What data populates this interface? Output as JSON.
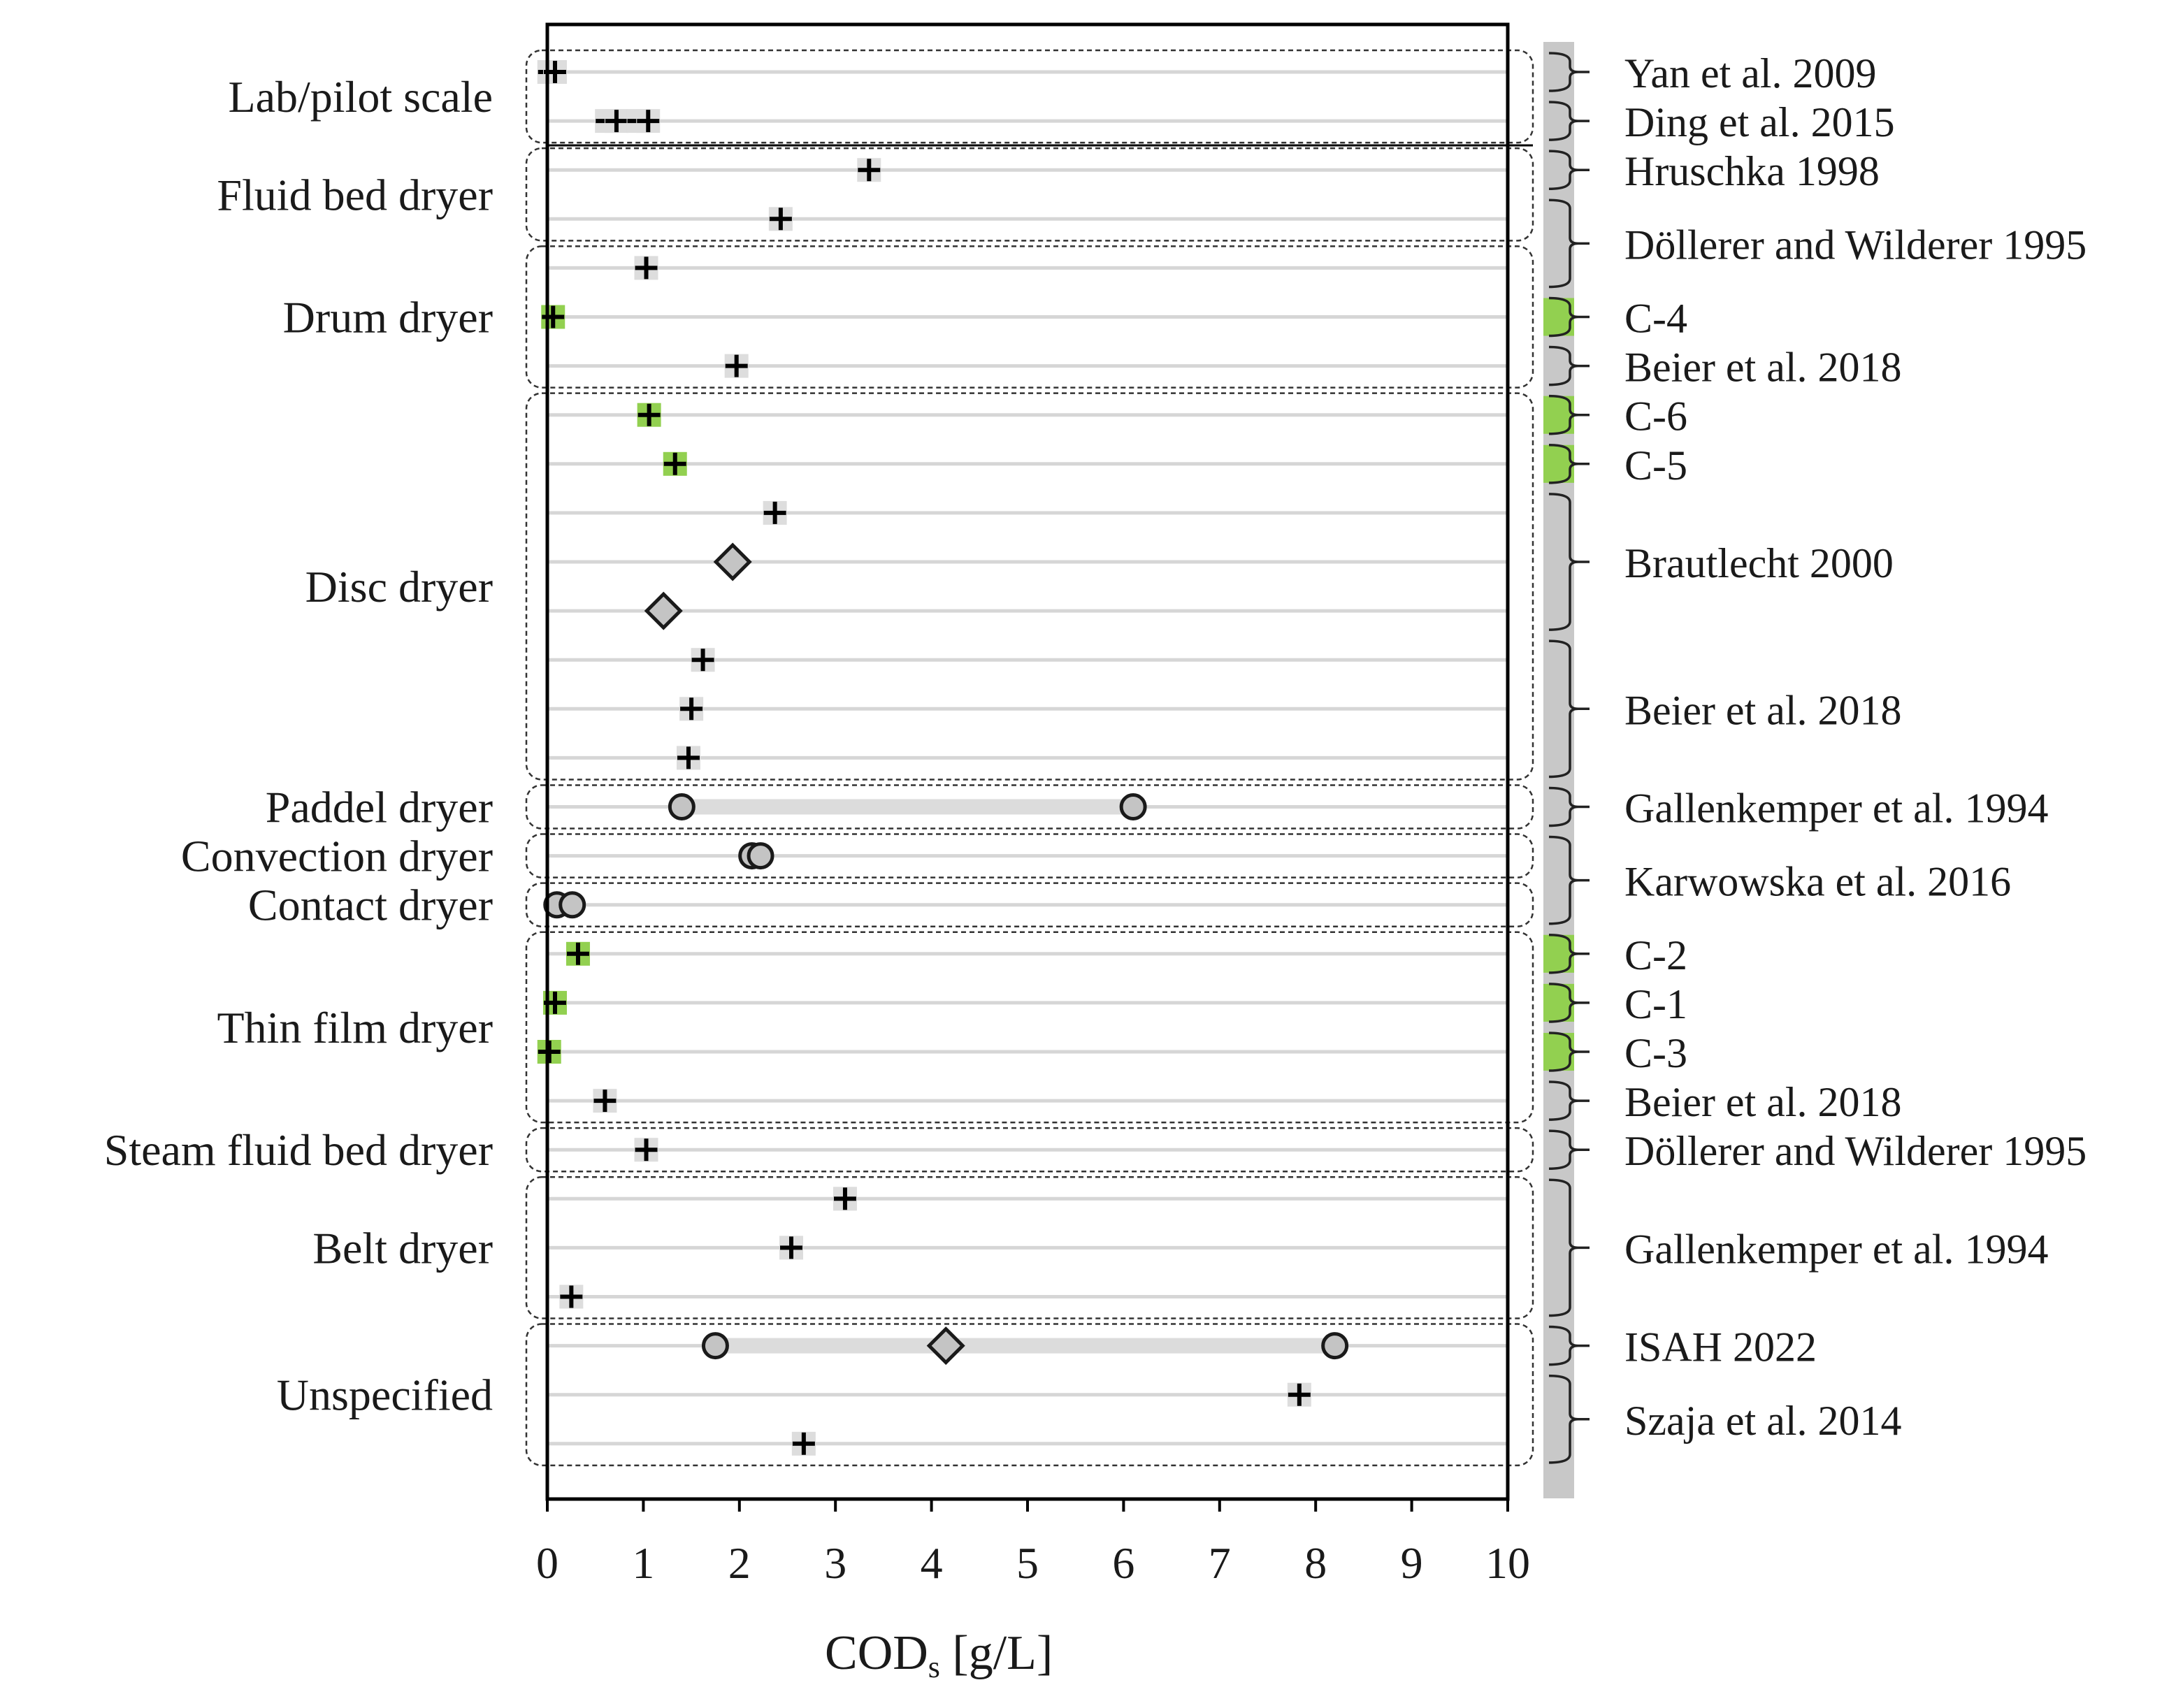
{
  "chart_data": {
    "type": "scatter",
    "xlabel": "COD",
    "xlabel_sub": "s",
    "xlabel_unit": " [g/L]",
    "xlim": [
      0,
      10
    ],
    "xticks": [
      "0",
      "1",
      "2",
      "3",
      "4",
      "5",
      "6",
      "7",
      "8",
      "9",
      "10"
    ],
    "grid": "horizontal",
    "row_count": 29,
    "groups": [
      {
        "label": "Lab/pilot scale",
        "rows": [
          0,
          1
        ]
      },
      {
        "label": "Fluid bed dryer",
        "rows": [
          2,
          3
        ]
      },
      {
        "label": "Drum dryer",
        "rows": [
          4,
          6
        ]
      },
      {
        "label": "Disc dryer",
        "rows": [
          7,
          14
        ]
      },
      {
        "label": "Paddel dryer",
        "rows": [
          15,
          15
        ]
      },
      {
        "label": "Convection dryer",
        "rows": [
          16,
          16
        ]
      },
      {
        "label": "Contact dryer",
        "rows": [
          17,
          17
        ]
      },
      {
        "label": "Thin film dryer",
        "rows": [
          18,
          21
        ]
      },
      {
        "label": "Steam fluid bed dryer",
        "rows": [
          22,
          22
        ]
      },
      {
        "label": "Belt dryer",
        "rows": [
          23,
          25
        ]
      },
      {
        "label": "Unspecified",
        "rows": [
          26,
          28
        ]
      }
    ],
    "sources": [
      {
        "label": "Yan et al. 2009",
        "rows": [
          0,
          0
        ],
        "highlight": false
      },
      {
        "label": "Ding et al. 2015",
        "rows": [
          1,
          1
        ],
        "highlight": false
      },
      {
        "label": "Hruschka 1998",
        "rows": [
          2,
          2
        ],
        "highlight": false
      },
      {
        "label": "Döllerer and Wilderer 1995",
        "rows": [
          3,
          4
        ],
        "highlight": false
      },
      {
        "label": "C-4",
        "rows": [
          5,
          5
        ],
        "highlight": true
      },
      {
        "label": "Beier et al. 2018",
        "rows": [
          6,
          6
        ],
        "highlight": false
      },
      {
        "label": "C-6",
        "rows": [
          7,
          7
        ],
        "highlight": true
      },
      {
        "label": "C-5",
        "rows": [
          8,
          8
        ],
        "highlight": true
      },
      {
        "label": "Brautlecht 2000",
        "rows": [
          9,
          11
        ],
        "highlight": false
      },
      {
        "label": "Beier et al. 2018",
        "rows": [
          12,
          14
        ],
        "highlight": false
      },
      {
        "label": "Gallenkemper et al. 1994",
        "rows": [
          15,
          15
        ],
        "highlight": false
      },
      {
        "label": "Karwowska et al. 2016",
        "rows": [
          16,
          17
        ],
        "highlight": false
      },
      {
        "label": "C-2",
        "rows": [
          18,
          18
        ],
        "highlight": true
      },
      {
        "label": "C-1",
        "rows": [
          19,
          19
        ],
        "highlight": true
      },
      {
        "label": "C-3",
        "rows": [
          20,
          20
        ],
        "highlight": true
      },
      {
        "label": "Beier et al. 2018",
        "rows": [
          21,
          21
        ],
        "highlight": false
      },
      {
        "label": "Döllerer and Wilderer 1995",
        "rows": [
          22,
          22
        ],
        "highlight": false
      },
      {
        "label": "Gallenkemper et al. 1994",
        "rows": [
          23,
          25
        ],
        "highlight": false
      },
      {
        "label": "ISAH 2022",
        "rows": [
          26,
          26
        ],
        "highlight": false
      },
      {
        "label": "Szaja et al. 2014",
        "rows": [
          27,
          28
        ],
        "highlight": false
      }
    ],
    "ranges": [
      {
        "row": 15,
        "from": 1.4,
        "to": 6.1
      },
      {
        "row": 26,
        "from": 1.75,
        "to": 8.2
      }
    ],
    "points": [
      {
        "row": 0,
        "x": 0.02,
        "marker": "plus",
        "highlight": false
      },
      {
        "row": 0,
        "x": 0.08,
        "marker": "plus",
        "highlight": false
      },
      {
        "row": 1,
        "x": 0.62,
        "marker": "plus",
        "highlight": false
      },
      {
        "row": 1,
        "x": 0.72,
        "marker": "plus",
        "highlight": false
      },
      {
        "row": 1,
        "x": 0.95,
        "marker": "plus",
        "highlight": false
      },
      {
        "row": 1,
        "x": 1.05,
        "marker": "plus",
        "highlight": false
      },
      {
        "row": 2,
        "x": 3.35,
        "marker": "plus",
        "highlight": false
      },
      {
        "row": 3,
        "x": 2.43,
        "marker": "plus",
        "highlight": false
      },
      {
        "row": 4,
        "x": 1.03,
        "marker": "plus",
        "highlight": false
      },
      {
        "row": 5,
        "x": 0.06,
        "marker": "plus",
        "highlight": true
      },
      {
        "row": 6,
        "x": 1.97,
        "marker": "plus",
        "highlight": false
      },
      {
        "row": 7,
        "x": 1.06,
        "marker": "plus",
        "highlight": true
      },
      {
        "row": 8,
        "x": 1.33,
        "marker": "plus",
        "highlight": true
      },
      {
        "row": 9,
        "x": 2.37,
        "marker": "plus",
        "highlight": false
      },
      {
        "row": 10,
        "x": 1.93,
        "marker": "diamond",
        "highlight": false
      },
      {
        "row": 11,
        "x": 1.21,
        "marker": "diamond",
        "highlight": false
      },
      {
        "row": 12,
        "x": 1.62,
        "marker": "plus",
        "highlight": false
      },
      {
        "row": 13,
        "x": 1.5,
        "marker": "plus",
        "highlight": false
      },
      {
        "row": 14,
        "x": 1.47,
        "marker": "plus",
        "highlight": false
      },
      {
        "row": 15,
        "x": 1.4,
        "marker": "circle",
        "highlight": false
      },
      {
        "row": 15,
        "x": 6.1,
        "marker": "circle",
        "highlight": false
      },
      {
        "row": 16,
        "x": 2.13,
        "marker": "circle",
        "highlight": false
      },
      {
        "row": 16,
        "x": 2.22,
        "marker": "circle",
        "highlight": false
      },
      {
        "row": 17,
        "x": 0.1,
        "marker": "circle",
        "highlight": false
      },
      {
        "row": 17,
        "x": 0.26,
        "marker": "circle",
        "highlight": false
      },
      {
        "row": 18,
        "x": 0.32,
        "marker": "plus",
        "highlight": true
      },
      {
        "row": 19,
        "x": 0.08,
        "marker": "plus",
        "highlight": true
      },
      {
        "row": 20,
        "x": 0.02,
        "marker": "plus",
        "highlight": true
      },
      {
        "row": 21,
        "x": 0.6,
        "marker": "plus",
        "highlight": false
      },
      {
        "row": 22,
        "x": 1.03,
        "marker": "plus",
        "highlight": false
      },
      {
        "row": 23,
        "x": 3.1,
        "marker": "plus",
        "highlight": false
      },
      {
        "row": 24,
        "x": 2.54,
        "marker": "plus",
        "highlight": false
      },
      {
        "row": 25,
        "x": 0.25,
        "marker": "plus",
        "highlight": false
      },
      {
        "row": 26,
        "x": 1.75,
        "marker": "circle",
        "highlight": false
      },
      {
        "row": 26,
        "x": 4.15,
        "marker": "diamond",
        "highlight": false
      },
      {
        "row": 26,
        "x": 8.2,
        "marker": "circle",
        "highlight": false
      },
      {
        "row": 27,
        "x": 7.83,
        "marker": "plus",
        "highlight": false
      },
      {
        "row": 28,
        "x": 2.67,
        "marker": "plus",
        "highlight": false
      }
    ],
    "colors": {
      "highlight": "#92d050",
      "neutral": "#c8c8c8",
      "grid": "#d6d6d6",
      "marker_fill": "#c4c4c4",
      "ink": "#1a1a1a"
    }
  }
}
